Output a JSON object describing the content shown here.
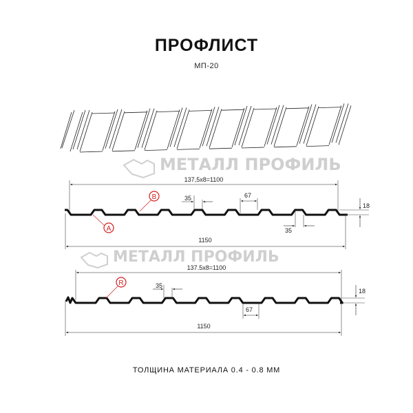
{
  "header": {
    "title": "ПРОФЛИСТ",
    "subtitle": "МП-20"
  },
  "watermark": "МЕТАЛЛ ПРОФИЛЬ",
  "profile_a": {
    "pitch_label": "137,5x8=1100",
    "width_label": "1150",
    "top_width": "35",
    "bottom_width": "35",
    "crest_label": "67",
    "height": "18",
    "markers": [
      "A",
      "B"
    ]
  },
  "profile_r": {
    "pitch_label": "137.5x8=1100",
    "width_label": "1150",
    "top_width": "35",
    "crest_label": "67",
    "height": "18",
    "markers": [
      "R"
    ]
  },
  "footer": {
    "thickness": "ТОЛЩИНА МАТЕРИАЛА 0.4 - 0.8 ММ"
  },
  "colors": {
    "marker": "#d42020",
    "line": "#111111",
    "watermark": "#cfcfcf"
  }
}
